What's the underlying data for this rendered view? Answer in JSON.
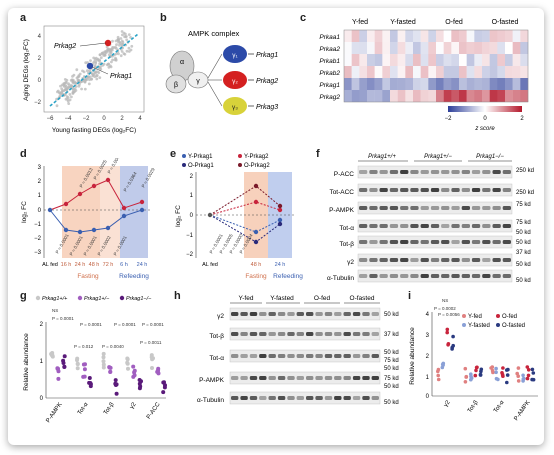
{
  "panels": {
    "a": {
      "letter": "a",
      "ylabel": "Aging DEGs (log₂FC)",
      "xlabel": "Young fasting DEGs (log₂FC)",
      "xticks": [
        "−6",
        "−4",
        "−2",
        "0",
        "2",
        "4"
      ],
      "yticks": [
        "4",
        "2",
        "0",
        "−2"
      ],
      "gene_labels": [
        "Prkag2",
        "Prkag1"
      ]
    },
    "b": {
      "letter": "b",
      "title": "AMPK complex",
      "subunits": [
        "α",
        "β",
        "γ"
      ],
      "isoforms": [
        {
          "symbol": "γ₁",
          "gene": "Prkag1",
          "color": "#2c4aa8"
        },
        {
          "symbol": "γ₂",
          "gene": "Prkag2",
          "color": "#d42020"
        },
        {
          "symbol": "γ₃",
          "gene": "Prkag3",
          "color": "#d8d23a"
        }
      ]
    },
    "c": {
      "letter": "c",
      "groups": [
        "Y-fed",
        "Y-fasted",
        "O-fed",
        "O-fasted"
      ],
      "genes": [
        "Prkaa1",
        "Prkaa2",
        "Prkab1",
        "Prkab2",
        "Prkag1",
        "Prkag2"
      ],
      "legend_min": "−2",
      "legend_mid": "0",
      "legend_max": "2",
      "legend_label": "z score"
    },
    "d": {
      "letter": "d",
      "ylabel": "log₂ FC",
      "yticks": [
        "3",
        "2",
        "1",
        "0",
        "−1",
        "−2",
        "−3"
      ],
      "xticks": [
        "AL fed",
        "16 h",
        "24 h",
        "48 h",
        "72 h",
        "6 h",
        "24 h"
      ],
      "fasting_label": "Fasting",
      "refeeding_label": "Refeeding",
      "pvalues_top": [
        "P = 0.0013",
        "P = 0.0025",
        "P = 0.0043",
        "P = 0.0364",
        "P = 0.0029"
      ],
      "pvalues_bottom": [
        "P = 0.0001",
        "P = 0.0001",
        "P = 0.0001",
        "P = 0.0002",
        "P = 0.0001"
      ]
    },
    "e": {
      "letter": "e",
      "legend": [
        "Y-Prkag1",
        "Y-Prkag2",
        "O-Prkag1",
        "O-Prkag2"
      ],
      "ylabel": "log₂ FC",
      "yticks": [
        "2",
        "1",
        "0",
        "−1",
        "−2"
      ],
      "xticks": [
        "AL fed",
        "48 h",
        "24 h"
      ],
      "fasting_label": "Fasting",
      "refeeding_label": "Refeeding",
      "pvalues": [
        "P = 0.0001",
        "P = 0.0005",
        "P = 0.0000",
        "P = 0.0004"
      ]
    },
    "f": {
      "letter": "f",
      "genotypes": [
        "Prkag1+/+",
        "Prkag1+/−",
        "Prkag1−/−"
      ],
      "rows": [
        "P-ACC",
        "Tot-ACC",
        "P-AMPK",
        "Tot-α",
        "Tot-β",
        "γ2",
        "α-Tubulin"
      ],
      "markers": [
        "250 kd",
        "250 kd",
        "75 kd",
        "75 kd",
        "50 kd",
        "50 kd",
        "37 kd",
        "50 kd",
        "50 kd"
      ]
    },
    "g": {
      "letter": "g",
      "legend": [
        "Prkag1+/+",
        "Prkag1+/−",
        "Prkag1−/−"
      ],
      "ylabel": "Relative abundance",
      "yticks": [
        "2",
        "1",
        "0"
      ],
      "categories": [
        "P-AMPK",
        "Tot-α",
        "Tot-β",
        "γ2",
        "P-ACC"
      ],
      "pvalues": [
        "NS",
        "P = 0.0001",
        "P = 0.0001",
        "P = 0.0001",
        "P = 0.0001",
        "P = 0.012",
        "P = 0.0040",
        "P = 0.0011"
      ]
    },
    "h": {
      "letter": "h",
      "groups": [
        "Y-fed",
        "Y-fasted",
        "O-fed",
        "O-fasted"
      ],
      "rows": [
        "γ2",
        "Tot-β",
        "Tot-α",
        "P-AMPK",
        "α-Tubulin"
      ],
      "markers": [
        "50 kd",
        "37 kd",
        "50 kd",
        "75 kd",
        "50 kd",
        "75 kd",
        "50 kd",
        "50 kd"
      ]
    },
    "i": {
      "letter": "i",
      "legend": [
        "Y-fed",
        "O-fed",
        "Y-fasted",
        "O-fasted"
      ],
      "ylabel": "Relative abundance",
      "yticks": [
        "4",
        "3",
        "2",
        "1",
        "0"
      ],
      "categories": [
        "γ2",
        "Tot-β",
        "Tot-α",
        "P-AMPK"
      ],
      "pvalues": [
        "NS",
        "P = 0.0002",
        "P = 0.0056"
      ]
    }
  },
  "colors": {
    "young": "#3a5fb0",
    "old": "#c8243c",
    "fasting_band": "#f6c9b0",
    "refeeding_band": "#b9c9ec",
    "purple_dark": "#5a1a7a",
    "purple_mid": "#a15ec0",
    "purple_light": "#d8b8e6"
  }
}
